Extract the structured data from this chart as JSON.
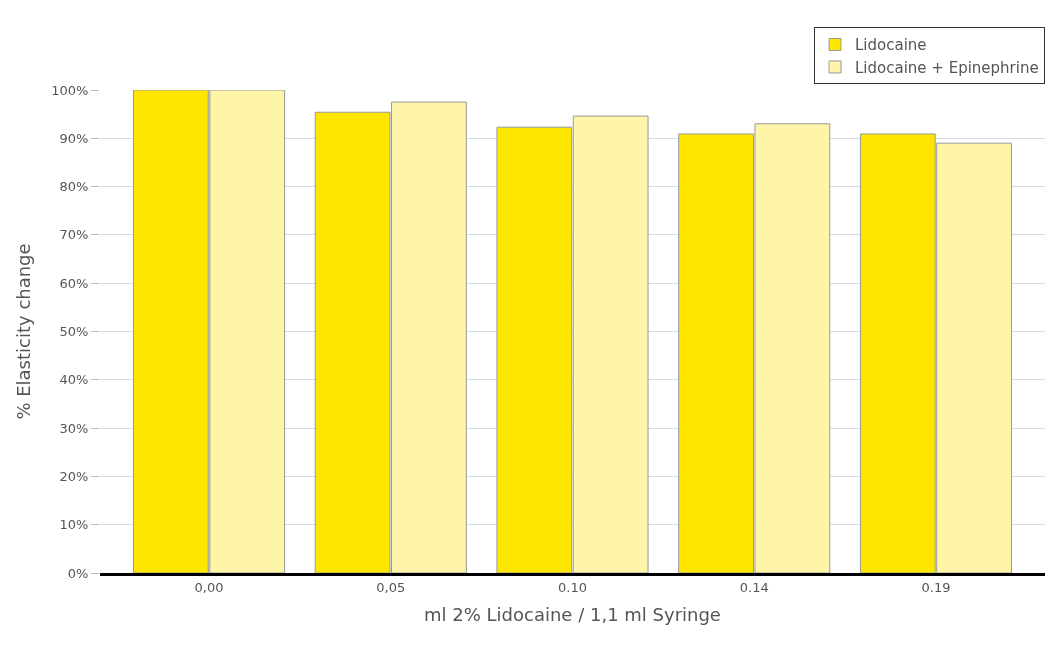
{
  "chart_data": {
    "type": "bar",
    "xlabel": "ml 2% Lidocaine / 1,1 ml Syringe",
    "ylabel": "% Elasticity change",
    "categories": [
      "0,00",
      "0,05",
      "0.10",
      "0.14",
      "0.19"
    ],
    "series": [
      {
        "name": "Lidocaine",
        "color": "#ffe600",
        "values": [
          100,
          95.4,
          92.3,
          90.9,
          90.9
        ]
      },
      {
        "name": "Lidocaine + Epinephrine",
        "color": "#fff5a8",
        "values": [
          100,
          97.5,
          94.6,
          93.0,
          89.0
        ]
      }
    ],
    "ylim": [
      0,
      100
    ],
    "yticks": [
      {
        "value": 0,
        "label": "0%"
      },
      {
        "value": 10,
        "label": "10%"
      },
      {
        "value": 20,
        "label": "20%"
      },
      {
        "value": 30,
        "label": "30%"
      },
      {
        "value": 40,
        "label": "40%"
      },
      {
        "value": 50,
        "label": "50%"
      },
      {
        "value": 60,
        "label": "60%"
      },
      {
        "value": 70,
        "label": "70%"
      },
      {
        "value": 80,
        "label": "80%"
      },
      {
        "value": 90,
        "label": "90%"
      },
      {
        "value": 100,
        "label": "100%"
      }
    ],
    "grid": "y",
    "legend": "top right"
  }
}
